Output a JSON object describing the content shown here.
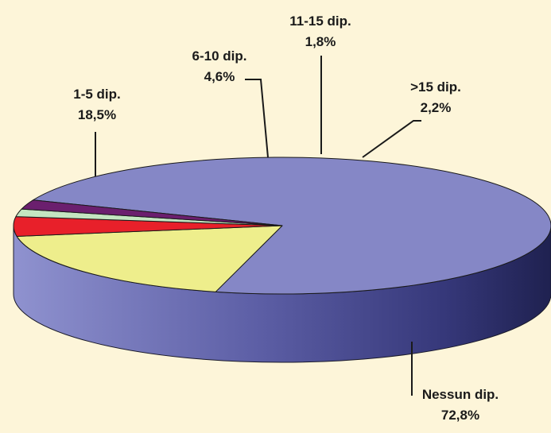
{
  "chart_data": {
    "type": "pie",
    "style": "3d",
    "slices": [
      {
        "label": "Nessun dip.",
        "value": 72.8,
        "value_text": "72,8%",
        "color": "#8587c6"
      },
      {
        "label": "1-5 dip.",
        "value": 18.5,
        "value_text": "18,5%",
        "color": "#eeee8c"
      },
      {
        "label": "6-10 dip.",
        "value": 4.6,
        "value_text": "4,6%",
        "color": "#e8202a"
      },
      {
        "label": "11-15 dip.",
        "value": 1.8,
        "value_text": "1,8%",
        "color": "#c4e5c1"
      },
      {
        "label": ">15 dip.",
        "value": 2.2,
        "value_text": "2,2%",
        "color": "#6b1f6e"
      }
    ]
  }
}
